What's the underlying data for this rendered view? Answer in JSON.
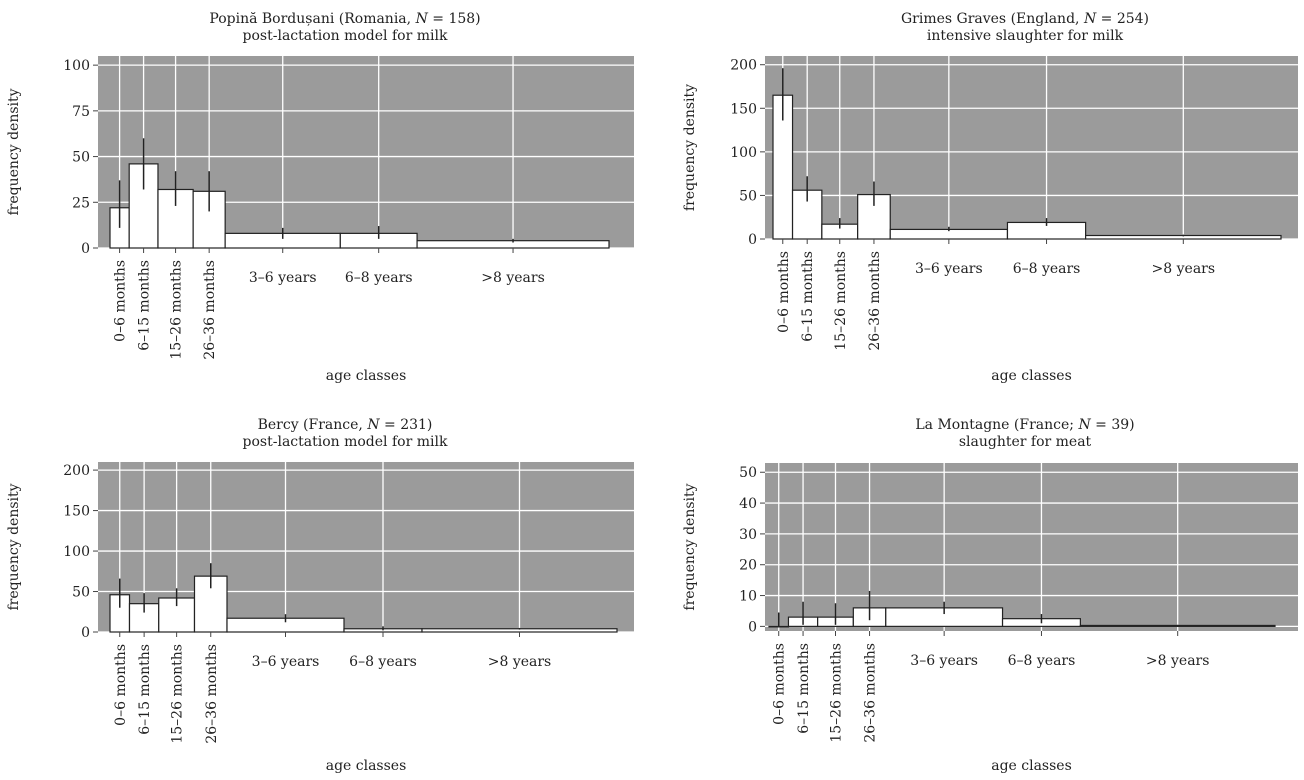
{
  "chart_data": [
    {
      "type": "bar",
      "title": "Popină Bordușani (Romania, N = 158)",
      "title_parts": [
        "Popină Bordușani (Romania, ",
        "N",
        " = 158)"
      ],
      "subtitle": "post-lactation model for milk",
      "xlabel": "age classes",
      "ylabel": "frequency density",
      "ylim": [
        0,
        105
      ],
      "yticks": [
        0,
        25,
        50,
        75,
        100
      ],
      "grid": true,
      "background": "#9b9b9b",
      "categories": [
        "0–6 months",
        "6–15 months",
        "15–26 months",
        "26–36 months",
        "3–6 years",
        "6–8 years",
        ">8 years"
      ],
      "class_bounds_months": [
        0,
        6,
        15,
        26,
        36,
        72,
        96,
        156
      ],
      "values": [
        22,
        46,
        32,
        31,
        8,
        8,
        4
      ],
      "error_low": [
        11,
        32,
        23,
        20,
        5,
        5,
        3
      ],
      "error_high": [
        37,
        60,
        42,
        42,
        11,
        12,
        5
      ]
    },
    {
      "type": "bar",
      "title": "Grimes Graves (England, N = 254)",
      "title_parts": [
        "Grimes Graves (England, ",
        "N",
        " = 254)"
      ],
      "subtitle": "intensive slaughter for milk",
      "xlabel": "age classes",
      "ylabel": "frequency density",
      "ylim": [
        0,
        210
      ],
      "yticks": [
        0,
        50,
        100,
        150,
        200
      ],
      "grid": true,
      "background": "#9b9b9b",
      "categories": [
        "0–6 months",
        "6–15 months",
        "15–26 months",
        "26–36 months",
        "3–6 years",
        "6–8 years",
        ">8 years"
      ],
      "class_bounds_months": [
        0,
        6,
        15,
        26,
        36,
        72,
        96,
        156
      ],
      "values": [
        165,
        56,
        17,
        51,
        11,
        19,
        4
      ],
      "error_low": [
        136,
        43,
        12,
        38,
        9,
        15,
        3
      ],
      "error_high": [
        196,
        72,
        24,
        66,
        14,
        24,
        5
      ]
    },
    {
      "type": "bar",
      "title": "Bercy (France, N = 231)",
      "title_parts": [
        "Bercy (France, ",
        "N",
        " = 231)"
      ],
      "subtitle": "post-lactation model for milk",
      "xlabel": "age classes",
      "ylabel": "frequency density",
      "ylim": [
        0,
        210
      ],
      "yticks": [
        0,
        50,
        100,
        150,
        200
      ],
      "grid": true,
      "background": "#9b9b9b",
      "categories": [
        "0–6 months",
        "6–15 months",
        "15–26 months",
        "26–36 months",
        "3–6 years",
        "6–8 years",
        ">8 years"
      ],
      "class_bounds_months": [
        0,
        6,
        15,
        26,
        36,
        72,
        96,
        156
      ],
      "values": [
        46,
        35,
        42,
        69,
        17,
        4,
        4
      ],
      "error_low": [
        30,
        24,
        32,
        54,
        12,
        2,
        3
      ],
      "error_high": [
        66,
        48,
        54,
        85,
        22,
        7,
        5
      ]
    },
    {
      "type": "bar",
      "title": "La Montagne (France; N = 39)",
      "title_parts": [
        "La Montagne (France; ",
        "N",
        " = 39)"
      ],
      "subtitle": "slaughter for meat",
      "xlabel": "age classes",
      "ylabel": "frequency density",
      "ylim": [
        -1.5,
        53
      ],
      "yticks": [
        0,
        10,
        20,
        30,
        40,
        50
      ],
      "grid": true,
      "background": "#9b9b9b",
      "categories": [
        "0–6 months",
        "6–15 months",
        "15–26 months",
        "26–36 months",
        "3–6 years",
        "6–8 years",
        ">8 years"
      ],
      "class_bounds_months": [
        0,
        6,
        15,
        26,
        36,
        72,
        96,
        156
      ],
      "values": [
        0,
        3,
        3,
        6,
        6,
        2.5,
        0.3
      ],
      "error_low": [
        0,
        0.5,
        0.5,
        2,
        4,
        1,
        0.1
      ],
      "error_high": [
        4.5,
        8,
        7.5,
        11.5,
        8,
        4,
        0.5
      ]
    }
  ]
}
